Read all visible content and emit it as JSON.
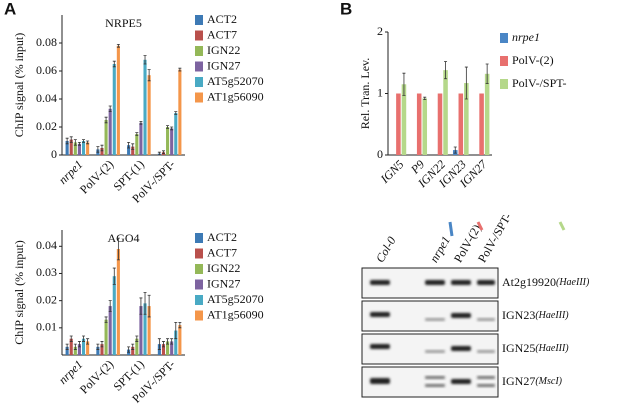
{
  "panel_labels": [
    "A",
    "B"
  ],
  "chart_data": [
    {
      "type": "bar",
      "title": "NRPE5",
      "y_label": "ChIP signal (% input)",
      "categories": [
        "nrpe1",
        "PolV-(2)",
        "SPT-(1)",
        "PolV-/SPT-"
      ],
      "series": [
        {
          "name": "ACT2",
          "color": "#3d7ab5",
          "values": [
            0.01,
            0.004,
            0.007,
            0.001
          ],
          "errors": [
            0.002,
            0.002,
            0.002,
            0.001
          ]
        },
        {
          "name": "ACT7",
          "color": "#b9504c",
          "values": [
            0.011,
            0.005,
            0.006,
            0.002
          ],
          "errors": [
            0.002,
            0.002,
            0.002,
            0.001
          ]
        },
        {
          "name": "IGN22",
          "color": "#94b858",
          "values": [
            0.009,
            0.025,
            0.015,
            0.02
          ],
          "errors": [
            0.002,
            0.002,
            0.001,
            0.001
          ]
        },
        {
          "name": "IGN27",
          "color": "#7d63a0",
          "values": [
            0.008,
            0.033,
            0.023,
            0.019
          ],
          "errors": [
            0.001,
            0.002,
            0.001,
            0.001
          ]
        },
        {
          "name": "AT5g52070",
          "color": "#49aac4",
          "values": [
            0.01,
            0.065,
            0.068,
            0.03
          ],
          "errors": [
            0.001,
            0.002,
            0.003,
            0.001
          ]
        },
        {
          "name": "AT1g56090",
          "color": "#f4964a",
          "values": [
            0.009,
            0.078,
            0.057,
            0.061
          ],
          "errors": [
            0.001,
            0.001,
            0.004,
            0.001
          ]
        }
      ],
      "ylim": [
        0,
        0.1
      ],
      "yticks": [
        0,
        0.02,
        0.04,
        0.06,
        0.08
      ],
      "legend": "right"
    },
    {
      "type": "bar",
      "title": "AGO4",
      "y_label": "ChIP signal (% input)",
      "categories": [
        "nrpe1",
        "PolV-(2)",
        "SPT-(1)",
        "PolV-/SPT-"
      ],
      "series": [
        {
          "name": "ACT2",
          "color": "#3d7ab5",
          "values": [
            0.003,
            0.003,
            0.002,
            0.004
          ],
          "errors": [
            0.001,
            0.001,
            0.001,
            0.002
          ]
        },
        {
          "name": "ACT7",
          "color": "#b9504c",
          "values": [
            0.006,
            0.004,
            0.003,
            0.004
          ],
          "errors": [
            0.001,
            0.001,
            0.001,
            0.001
          ]
        },
        {
          "name": "IGN22",
          "color": "#94b858",
          "values": [
            0.003,
            0.013,
            0.006,
            0.005
          ],
          "errors": [
            0.001,
            0.001,
            0.001,
            0.001
          ]
        },
        {
          "name": "IGN27",
          "color": "#7d63a0",
          "values": [
            0.004,
            0.018,
            0.018,
            0.005
          ],
          "errors": [
            0.001,
            0.002,
            0.003,
            0.001
          ]
        },
        {
          "name": "AT5g52070",
          "color": "#49aac4",
          "values": [
            0.006,
            0.029,
            0.019,
            0.009
          ],
          "errors": [
            0.001,
            0.003,
            0.004,
            0.003
          ]
        },
        {
          "name": "AT1g56090",
          "color": "#f4964a",
          "values": [
            0.005,
            0.039,
            0.018,
            0.011
          ],
          "errors": [
            0.001,
            0.004,
            0.004,
            0.001
          ]
        }
      ],
      "ylim": [
        0,
        0.046
      ],
      "yticks": [
        0.01,
        0.02,
        0.03,
        0.04
      ],
      "legend": "right"
    },
    {
      "type": "bar",
      "y_label": "Rel. Tran. Lev.",
      "categories": [
        "IGN5",
        "P9",
        "IGN22",
        "IGN23",
        "IGN27"
      ],
      "series": [
        {
          "name": "nrpe1",
          "color": "#4a86c5",
          "values": [
            0,
            0,
            0,
            0.08,
            0
          ],
          "errors": [
            0,
            0,
            0,
            0.05,
            0
          ]
        },
        {
          "name": "PolV-(2)",
          "color": "#e8706e",
          "values": [
            1,
            1,
            1,
            1,
            1
          ],
          "errors": [
            0,
            0,
            0,
            0,
            0
          ]
        },
        {
          "name": "PolV-/SPT-",
          "color": "#b5d88a",
          "values": [
            1.15,
            0.92,
            1.38,
            1.17,
            1.32
          ],
          "errors": [
            0.18,
            0.02,
            0.14,
            0.26,
            0.16
          ]
        }
      ],
      "ylim": [
        0,
        2
      ],
      "yticks": [
        0,
        1,
        2
      ],
      "legend": "right"
    }
  ],
  "gel": {
    "lanes": [
      "Col-0",
      "nrpe1",
      "PolV-(2)",
      "PolV-/SPT-"
    ],
    "rows": [
      {
        "gene": "At2g19920",
        "enzyme": "(HaeIII)"
      },
      {
        "gene": "IGN23",
        "enzyme": "(HaeIII)"
      },
      {
        "gene": "IGN25",
        "enzyme": "(HaeIII)"
      },
      {
        "gene": "IGN27",
        "enzyme": "(MscI)"
      }
    ]
  }
}
